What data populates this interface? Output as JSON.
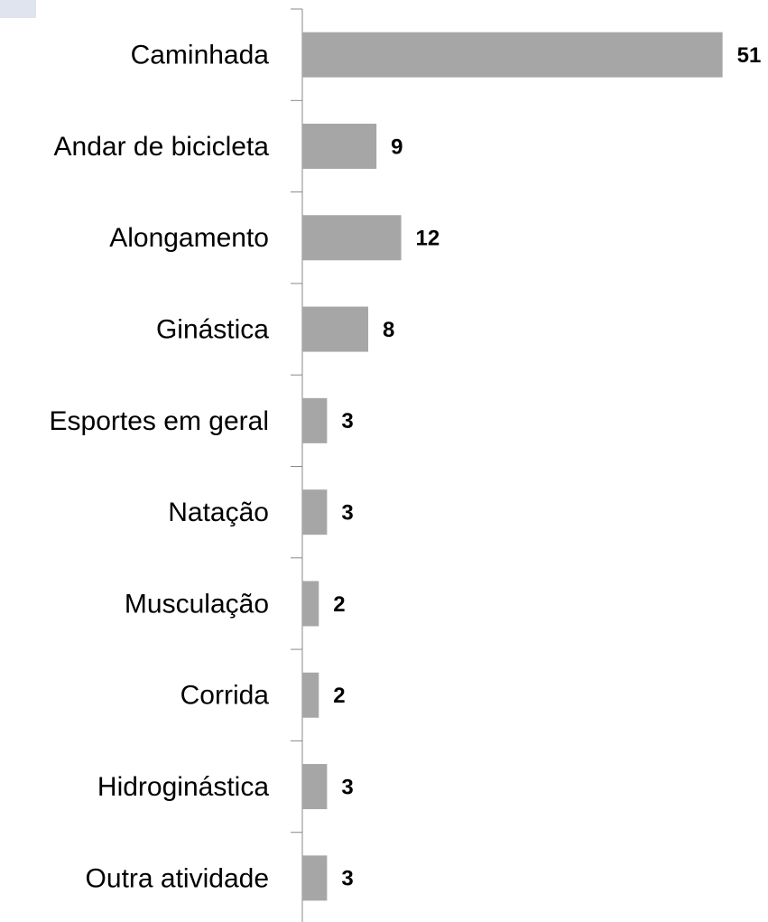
{
  "chart_data": {
    "type": "bar",
    "orientation": "horizontal",
    "categories": [
      "Caminhada",
      "Andar de bicicleta",
      "Alongamento",
      "Ginástica",
      "Esportes em geral",
      "Natação",
      "Musculação",
      "Corrida",
      "Hidroginástica",
      "Outra atividade"
    ],
    "values": [
      51,
      9,
      12,
      8,
      3,
      3,
      2,
      2,
      3,
      3
    ],
    "color": "#a6a6a6"
  }
}
